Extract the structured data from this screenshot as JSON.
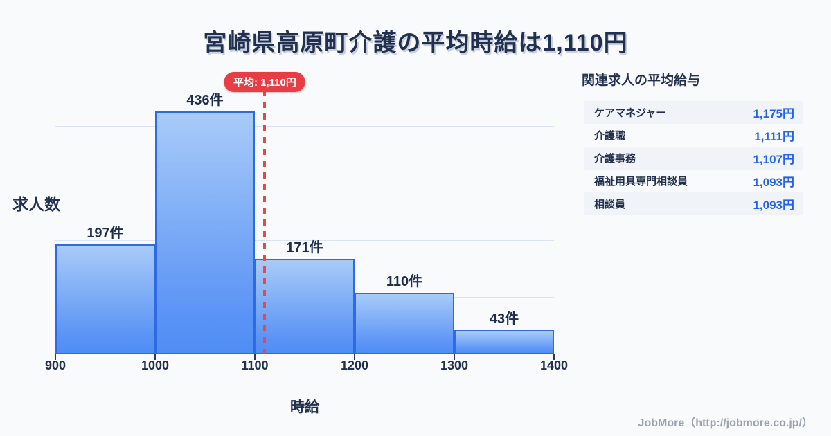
{
  "title": "宮崎県高原町介護の平均時給は1,110円",
  "chart_data": {
    "type": "bar",
    "histogram": true,
    "title": "宮崎県高原町介護の平均時給は1,110円",
    "xlabel": "時給",
    "ylabel": "求人数",
    "bin_edges": [
      900,
      1000,
      1100,
      1200,
      1300,
      1400
    ],
    "categories": [
      "900-1000",
      "1000-1100",
      "1100-1200",
      "1200-1300",
      "1300-1400"
    ],
    "values": [
      197,
      436,
      171,
      110,
      43
    ],
    "bar_labels": [
      "197件",
      "436件",
      "171件",
      "110件",
      "43件"
    ],
    "x_ticks": [
      "900",
      "1000",
      "1100",
      "1200",
      "1300",
      "1400"
    ],
    "xlim": [
      900,
      1400
    ],
    "mean": 1110,
    "mean_label": "平均: 1,110円",
    "grid": "horizontal",
    "legend": "none",
    "colors": {
      "background": "#f8fafc",
      "bar_fill_top": "#a8cbf8",
      "bar_fill_bottom": "#4f8df5",
      "bar_border": "#2e6be2",
      "mean_red": "#e73e46",
      "text_dark": "#22304d",
      "gridline": "#dbe2f0",
      "value_blue": "#2563eb",
      "footer_gray": "#9aa2ad"
    }
  },
  "side_panel": {
    "title": "関連求人の平均給与",
    "rows": [
      {
        "label": "ケアマネジャー",
        "value": "1,175円"
      },
      {
        "label": "介護職",
        "value": "1,111円"
      },
      {
        "label": "介護事務",
        "value": "1,107円"
      },
      {
        "label": "福祉用具専門相談員",
        "value": "1,093円"
      },
      {
        "label": "相談員",
        "value": "1,093円"
      }
    ]
  },
  "footer": {
    "credit": "JobMore（http://jobmore.co.jp/）"
  }
}
